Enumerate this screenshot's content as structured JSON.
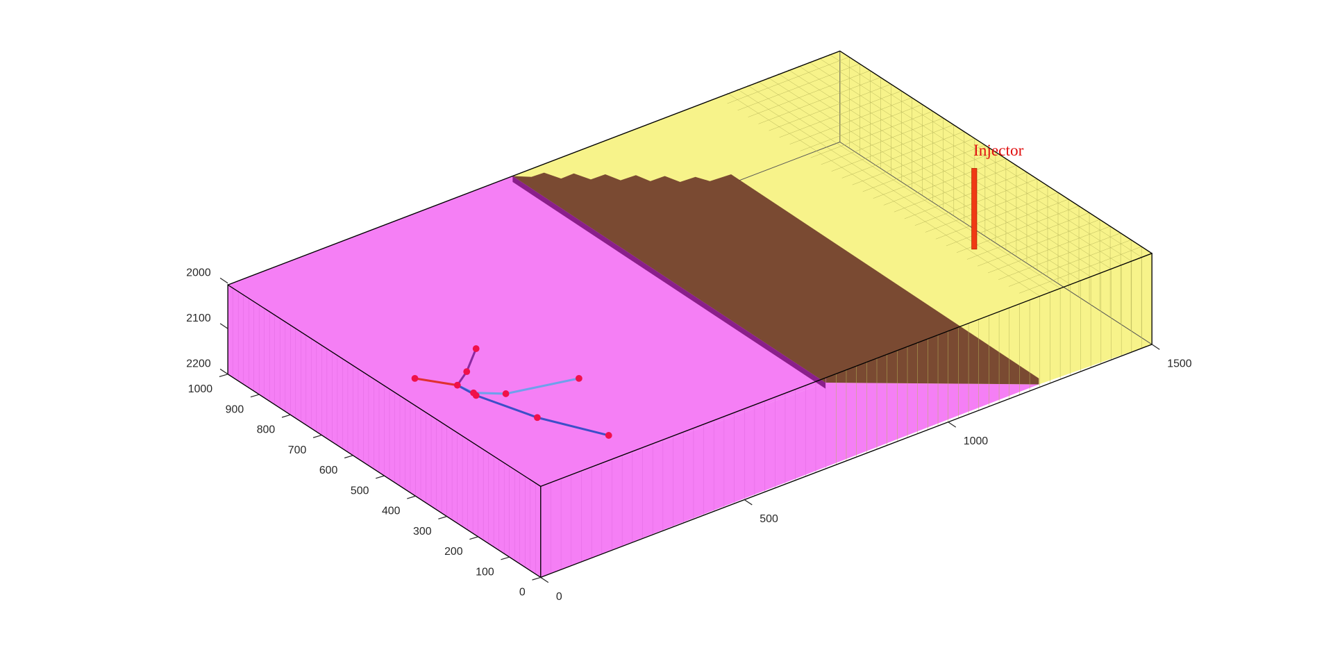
{
  "chart_data": {
    "type": "mesh3d",
    "annotations": [
      "Injector"
    ],
    "xlim": [
      0,
      1500
    ],
    "xticks": [
      0,
      500,
      1000,
      1500
    ],
    "ylim": [
      0,
      1000
    ],
    "yticks": [
      0,
      100,
      200,
      300,
      400,
      500,
      600,
      700,
      800,
      900,
      1000
    ],
    "zlim": [
      2000,
      2200
    ],
    "zticks": [
      2000,
      2100,
      2200
    ],
    "z_reversed": true
  }
}
